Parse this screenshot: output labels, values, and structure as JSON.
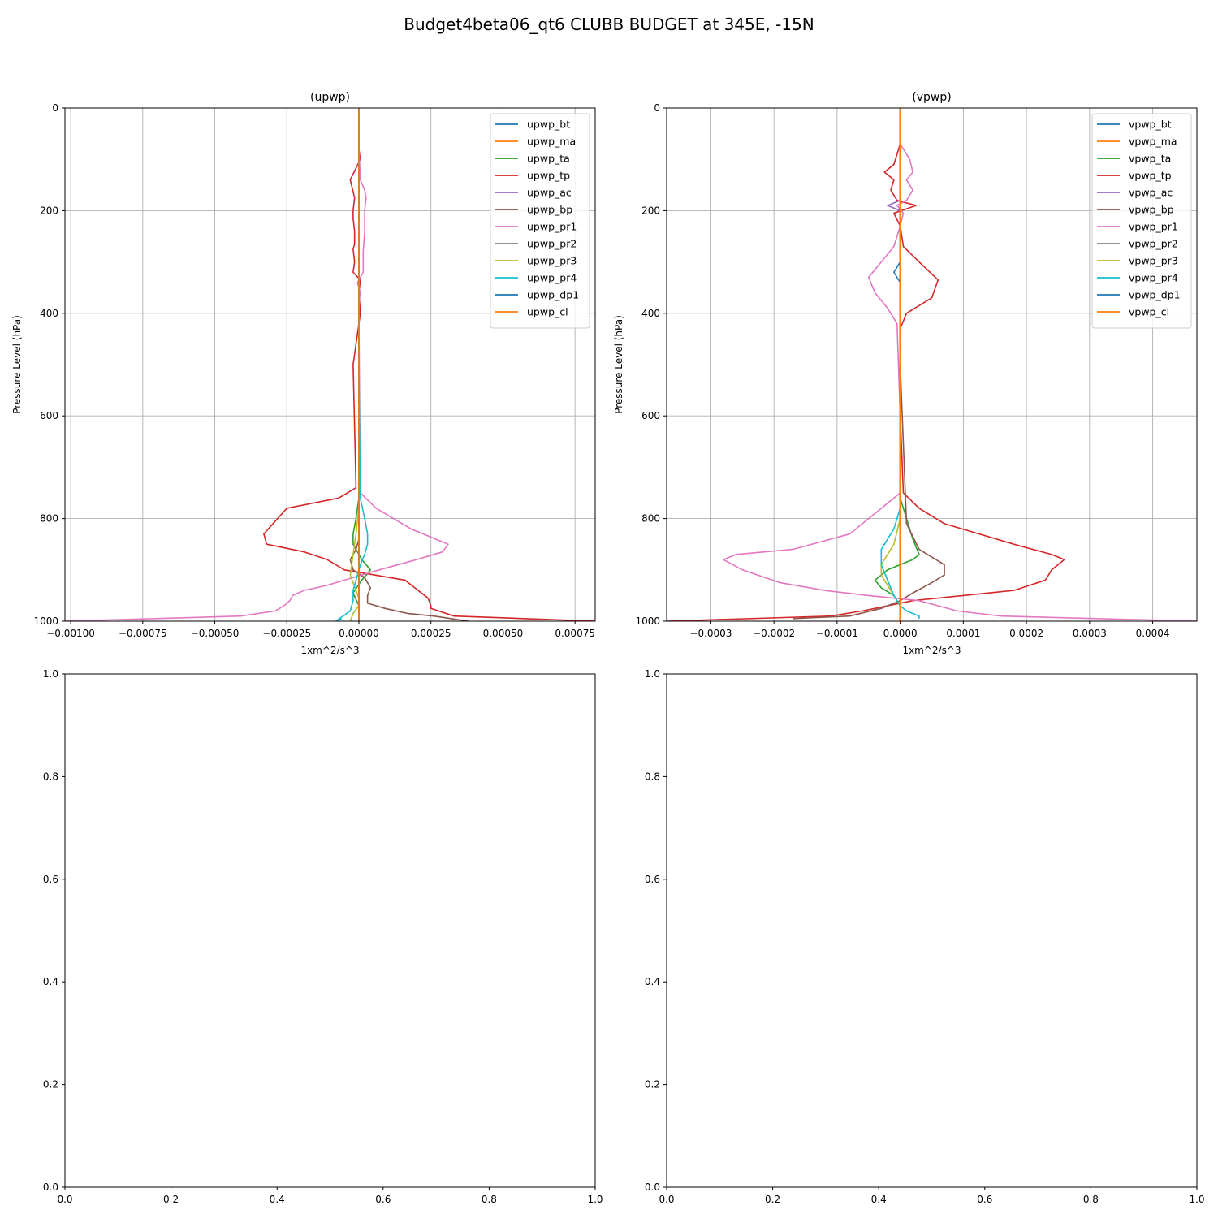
{
  "figure": {
    "suptitle": "Budget4beta06_qt6 CLUBB BUDGET at 345E, -15N"
  },
  "colors": [
    "#1f77b4",
    "#ff7f0e",
    "#2ca02c",
    "#d62728",
    "#9467bd",
    "#8c564b",
    "#e377c2",
    "#7f7f7f",
    "#bcbd22",
    "#17becf",
    "#1f77b4",
    "#ff7f0e"
  ],
  "chart_data": [
    {
      "type": "line",
      "title": "(upwp)",
      "xlabel": "1xm^2/s^3",
      "ylabel": "Pressure Level (hPa)",
      "xlim": [
        -0.00102,
        0.00082
      ],
      "ylim": [
        1000,
        0
      ],
      "grid": true,
      "legend": "top-right",
      "xticks": [
        -0.001,
        -0.00075,
        -0.0005,
        -0.00025,
        0.0,
        0.00025,
        0.0005,
        0.00075
      ],
      "xtick_labels": [
        "−0.00100",
        "−0.00075",
        "−0.00050",
        "−0.00025",
        "0.00000",
        "0.00025",
        "0.00050",
        "0.00075"
      ],
      "yticks": [
        0,
        200,
        400,
        600,
        800,
        1000
      ],
      "ytick_labels": [
        "0",
        "200",
        "400",
        "600",
        "800",
        "1000"
      ],
      "series": [
        {
          "name": "upwp_bt",
          "x": [
            0,
            0,
            0,
            0
          ],
          "y": [
            0,
            500,
            800,
            1000
          ]
        },
        {
          "name": "upwp_ma",
          "x": [
            0,
            0,
            0,
            0
          ],
          "y": [
            0,
            500,
            800,
            1000
          ]
        },
        {
          "name": "upwp_ta",
          "x": [
            0,
            0,
            0,
            -1e-05,
            -2e-05,
            -2e-05,
            1e-05,
            4e-05,
            1e-05,
            -2e-05,
            0,
            0
          ],
          "y": [
            0,
            500,
            760,
            800,
            830,
            850,
            880,
            900,
            920,
            945,
            970,
            1000
          ]
        },
        {
          "name": "upwp_tp",
          "x": [
            0,
            0,
            5e-06,
            -3e-05,
            -1.5e-05,
            -2e-05,
            -2e-05,
            -1.5e-05,
            -1.5e-05,
            -2e-05,
            -1.5e-05,
            -2e-05,
            5e-06,
            0,
            5e-06,
            -2e-05,
            -1e-05,
            -7e-05,
            -0.00025,
            -0.00033,
            -0.00032,
            -0.00019,
            -0.00011,
            -5e-05,
            0.00016,
            0.00024,
            0.00025,
            0.00025,
            0.00033,
            0.00082
          ],
          "y": [
            0,
            80,
            100,
            140,
            175,
            200,
            215,
            240,
            265,
            275,
            300,
            320,
            335,
            360,
            400,
            500,
            740,
            760,
            780,
            830,
            850,
            865,
            880,
            900,
            920,
            955,
            970,
            975,
            990,
            1000
          ]
        },
        {
          "name": "upwp_ac",
          "x": [
            0,
            0,
            0
          ],
          "y": [
            0,
            500,
            1000
          ]
        },
        {
          "name": "upwp_bp",
          "x": [
            0,
            0,
            0,
            -1e-05,
            -3e-05,
            -2e-05,
            2e-05,
            4e-05,
            3e-05,
            3e-05,
            9e-05,
            0.00017,
            0.00026,
            0.00038
          ],
          "y": [
            0,
            500,
            840,
            860,
            880,
            900,
            915,
            935,
            950,
            965,
            975,
            985,
            990,
            1000
          ]
        },
        {
          "name": "upwp_pr1",
          "x": [
            0,
            0,
            5e-06,
            2e-05,
            2.5e-05,
            2e-05,
            2e-05,
            1.5e-05,
            1.5e-05,
            -5e-06,
            5e-06,
            0,
            0,
            5e-06,
            6e-05,
            0.00018,
            0.00031,
            0.00029,
            0.0002,
            7e-05,
            -2e-05,
            -0.00011,
            -0.00019,
            -0.00023,
            -0.00024,
            -0.00026,
            -0.00029,
            -0.00041,
            -0.00102
          ],
          "y": [
            0,
            80,
            140,
            160,
            175,
            200,
            240,
            280,
            320,
            340,
            360,
            380,
            400,
            750,
            780,
            820,
            850,
            865,
            880,
            900,
            915,
            930,
            940,
            950,
            960,
            970,
            980,
            990,
            1000
          ]
        },
        {
          "name": "upwp_pr2",
          "x": [
            0,
            0,
            0
          ],
          "y": [
            0,
            500,
            1000
          ]
        },
        {
          "name": "upwp_pr3",
          "x": [
            0,
            0,
            0,
            -1e-05,
            -2e-05,
            -3e-05,
            -1e-05,
            0,
            0,
            -2e-05,
            -3e-05
          ],
          "y": [
            0,
            500,
            780,
            830,
            870,
            910,
            940,
            955,
            970,
            985,
            1000
          ]
        },
        {
          "name": "upwp_pr4",
          "x": [
            0,
            0,
            5e-06,
            2e-05,
            3e-05,
            3e-05,
            2e-05,
            5e-06,
            -1e-05,
            -2e-05,
            -2e-05,
            -3e-05,
            -8e-05,
            -6e-05
          ],
          "y": [
            0,
            500,
            760,
            800,
            830,
            850,
            870,
            890,
            920,
            940,
            960,
            980,
            1000,
            995
          ]
        },
        {
          "name": "upwp_dp1",
          "x": [
            0,
            0,
            0
          ],
          "y": [
            0,
            500,
            1000
          ]
        },
        {
          "name": "upwp_cl",
          "x": [
            0,
            0,
            0
          ],
          "y": [
            0,
            500,
            1000
          ]
        }
      ]
    },
    {
      "type": "line",
      "title": "(vpwp)",
      "xlabel": "1xm^2/s^3",
      "ylabel": "Pressure Level (hPa)",
      "xlim": [
        -0.00037,
        0.00047
      ],
      "ylim": [
        1000,
        0
      ],
      "grid": true,
      "legend": "top-right",
      "xticks": [
        -0.0003,
        -0.0002,
        -0.0001,
        0.0,
        0.0001,
        0.0002,
        0.0003,
        0.0004
      ],
      "xtick_labels": [
        "−0.0003",
        "−0.0002",
        "−0.0001",
        "0.0000",
        "0.0001",
        "0.0002",
        "0.0003",
        "0.0004"
      ],
      "yticks": [
        0,
        200,
        400,
        600,
        800,
        1000
      ],
      "ytick_labels": [
        "0",
        "200",
        "400",
        "600",
        "800",
        "1000"
      ],
      "series": [
        {
          "name": "vpwp_bt",
          "x": [
            0,
            0,
            0,
            0
          ],
          "y": [
            0,
            500,
            800,
            1000
          ]
        },
        {
          "name": "vpwp_ma",
          "x": [
            0,
            0,
            0,
            0
          ],
          "y": [
            0,
            500,
            800,
            1000
          ]
        },
        {
          "name": "vpwp_ta",
          "x": [
            0,
            0,
            0,
            1e-05,
            2e-05,
            3e-05,
            2e-05,
            -2e-05,
            -4e-05,
            -3e-05,
            -1e-05,
            0,
            0
          ],
          "y": [
            0,
            500,
            760,
            800,
            840,
            870,
            880,
            900,
            920,
            935,
            950,
            970,
            1000
          ]
        },
        {
          "name": "vpwp_tp",
          "x": [
            0,
            0,
            -5e-06,
            -1e-05,
            -2.5e-05,
            -1e-05,
            -1.5e-05,
            -5e-06,
            2.5e-05,
            -1e-05,
            0,
            5e-06,
            3e-05,
            6e-05,
            5e-05,
            1e-05,
            0,
            0,
            5e-06,
            3e-05,
            7e-05,
            0.00018,
            0.00024,
            0.00026,
            0.00024,
            0.00023,
            0.00018,
            2e-05,
            -6e-05,
            -0.00011,
            -0.00037
          ],
          "y": [
            0,
            70,
            90,
            110,
            125,
            140,
            160,
            180,
            190,
            205,
            230,
            270,
            300,
            335,
            370,
            400,
            430,
            600,
            750,
            780,
            810,
            850,
            870,
            880,
            900,
            920,
            940,
            960,
            980,
            990,
            1000
          ]
        },
        {
          "name": "vpwp_ac",
          "x": [
            0,
            0,
            -2e-05,
            0,
            0
          ],
          "y": [
            0,
            180,
            190,
            200,
            1000
          ]
        },
        {
          "name": "vpwp_bp",
          "x": [
            0,
            0,
            1e-05,
            3e-05,
            7e-05,
            7e-05,
            5e-05,
            2e-05,
            0,
            -3e-05,
            -8e-05,
            -0.00017
          ],
          "y": [
            0,
            500,
            810,
            860,
            890,
            910,
            925,
            945,
            960,
            975,
            990,
            995
          ]
        },
        {
          "name": "vpwp_pr1",
          "x": [
            0,
            0,
            5e-06,
            1.5e-05,
            2e-05,
            1e-05,
            2e-05,
            1e-05,
            -5e-06,
            5e-06,
            0,
            -1e-05,
            -3e-05,
            -5e-05,
            -4e-05,
            -2e-05,
            -5e-06,
            0,
            0,
            -3e-05,
            -8e-05,
            -0.00017,
            -0.00026,
            -0.00028,
            -0.00025,
            -0.00019,
            -0.00012,
            -5e-05,
            3e-05,
            9e-05,
            0.00016,
            0.00047
          ],
          "y": [
            0,
            70,
            80,
            100,
            125,
            140,
            160,
            180,
            190,
            205,
            230,
            270,
            300,
            330,
            360,
            390,
            420,
            600,
            750,
            780,
            830,
            860,
            870,
            880,
            900,
            925,
            940,
            950,
            960,
            980,
            990,
            1000
          ]
        },
        {
          "name": "vpwp_pr2",
          "x": [
            0,
            0,
            0
          ],
          "y": [
            0,
            500,
            1000
          ]
        },
        {
          "name": "vpwp_pr3",
          "x": [
            0,
            0,
            0,
            -1e-05,
            -2e-05,
            -3e-05,
            -3e-05,
            -2e-05,
            -1e-05,
            0,
            0
          ],
          "y": [
            0,
            500,
            800,
            850,
            870,
            890,
            910,
            930,
            950,
            970,
            1000
          ]
        },
        {
          "name": "vpwp_pr4",
          "x": [
            0,
            0,
            0,
            -1e-05,
            -3e-05,
            -3e-05,
            -2e-05,
            -1e-05,
            0,
            1e-05,
            3e-05,
            3e-05
          ],
          "y": [
            0,
            500,
            780,
            820,
            860,
            890,
            920,
            950,
            970,
            980,
            990,
            995
          ]
        },
        {
          "name": "vpwp_dp1",
          "x": [
            0,
            0,
            -1e-05,
            0,
            0
          ],
          "y": [
            0,
            300,
            320,
            340,
            1000
          ]
        },
        {
          "name": "vpwp_cl",
          "x": [
            0,
            0,
            0
          ],
          "y": [
            0,
            500,
            1000
          ]
        }
      ]
    },
    {
      "type": "line",
      "title": "",
      "xlim": [
        0,
        1
      ],
      "ylim": [
        0,
        1
      ],
      "grid": false,
      "xticks": [
        0,
        0.2,
        0.4,
        0.6,
        0.8,
        1.0
      ],
      "xtick_labels": [
        "0.0",
        "0.2",
        "0.4",
        "0.6",
        "0.8",
        "1.0"
      ],
      "yticks": [
        0,
        0.2,
        0.4,
        0.6,
        0.8,
        1.0
      ],
      "ytick_labels": [
        "0.0",
        "0.2",
        "0.4",
        "0.6",
        "0.8",
        "1.0"
      ],
      "series": []
    },
    {
      "type": "line",
      "title": "",
      "xlim": [
        0,
        1
      ],
      "ylim": [
        0,
        1
      ],
      "grid": false,
      "xticks": [
        0,
        0.2,
        0.4,
        0.6,
        0.8,
        1.0
      ],
      "xtick_labels": [
        "0.0",
        "0.2",
        "0.4",
        "0.6",
        "0.8",
        "1.0"
      ],
      "yticks": [
        0,
        0.2,
        0.4,
        0.6,
        0.8,
        1.0
      ],
      "ytick_labels": [
        "0.0",
        "0.2",
        "0.4",
        "0.6",
        "0.8",
        "1.0"
      ],
      "series": []
    }
  ]
}
